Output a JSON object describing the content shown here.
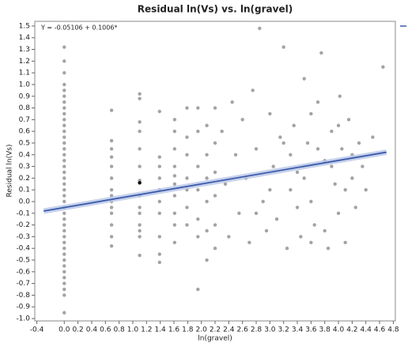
{
  "chart_data": {
    "type": "scatter",
    "title": "Residual ln(Vs) vs. ln(gravel)",
    "x_label": "ln(gravel)",
    "y_label": "Residual ln(Vs)",
    "annotation": "Y = -0.05106 + 0.1006*",
    "xlim": [
      -0.43,
      4.83
    ],
    "ylim": [
      -1.02,
      1.54
    ],
    "xticks": [
      -0.4,
      {
        "value": 0,
        "label": "0.0"
      },
      0.2,
      0.4,
      0.6,
      0.8,
      {
        "value": 1,
        "label": "1.0"
      },
      1.2,
      1.4,
      1.6,
      1.8,
      {
        "value": 2,
        "label": "2.0"
      },
      2.2,
      2.4,
      2.6,
      2.8,
      {
        "value": 3,
        "label": "3.0"
      },
      3.2,
      3.4,
      3.6,
      3.8,
      {
        "value": 4,
        "label": "4.0"
      },
      4.2,
      4.4,
      4.6,
      4.8
    ],
    "yticks": [
      {
        "value": -1,
        "label": "-1.0"
      },
      -0.9,
      -0.8,
      -0.7,
      -0.6,
      -0.5,
      -0.4,
      -0.3,
      -0.2,
      -0.1,
      {
        "value": 0,
        "label": "0.0"
      },
      0.1,
      0.2,
      0.3,
      0.4,
      0.5,
      0.6,
      0.7,
      0.8,
      0.9,
      {
        "value": 1,
        "label": "1.0"
      },
      1.1,
      1.2,
      1.3,
      1.4,
      1.5
    ],
    "grid": false,
    "points": {
      "color": "#a3a3a3",
      "x": [
        0,
        0,
        0,
        0,
        0,
        0,
        0,
        0,
        0,
        0,
        0,
        0,
        0,
        0,
        0,
        0,
        0,
        0,
        0,
        0,
        0,
        0,
        0,
        0,
        0,
        0,
        0,
        0,
        0,
        0,
        0,
        0,
        0,
        0,
        0,
        0,
        0,
        0,
        0,
        0,
        0,
        0.69,
        0.69,
        0.69,
        0.69,
        0.69,
        0.69,
        0.69,
        0.69,
        0.69,
        0.69,
        0.69,
        0.69,
        0.69,
        0.69,
        1.1,
        1.1,
        1.1,
        1.1,
        1.1,
        1.1,
        1.1,
        1.1,
        1.1,
        1.1,
        1.1,
        1.1,
        1.1,
        1.1,
        1.39,
        1.39,
        1.39,
        1.39,
        1.39,
        1.39,
        1.39,
        1.39,
        1.39,
        1.39,
        1.61,
        1.61,
        1.61,
        1.61,
        1.61,
        1.61,
        1.61,
        1.61,
        1.61,
        1.61,
        1.79,
        1.79,
        1.79,
        1.79,
        1.79,
        1.79,
        1.79,
        1.95,
        1.95,
        1.95,
        1.95,
        1.95,
        1.95,
        1.95,
        2.08,
        2.08,
        2.08,
        2.08,
        2.08,
        2.08,
        2.2,
        2.2,
        2.2,
        2.2,
        2.2,
        2.2,
        2.3,
        2.35,
        2.4,
        2.45,
        2.5,
        2.55,
        2.6,
        2.65,
        2.7,
        2.75,
        2.8,
        2.85,
        2.9,
        2.95,
        3.0,
        3.05,
        3.1,
        3.15,
        3.2,
        3.25,
        3.3,
        3.35,
        3.4,
        3.45,
        3.5,
        3.55,
        3.6,
        3.65,
        3.7,
        3.75,
        3.8,
        3.85,
        3.9,
        3.95,
        4.0,
        4.02,
        4.05,
        4.1,
        4.15,
        4.2,
        4.25,
        4.3,
        4.35,
        4.4,
        4.5,
        4.65,
        3.3,
        3.5,
        3.7,
        3.9,
        4.0,
        3.6,
        3.8,
        4.1,
        3.4,
        3.2,
        3.0,
        2.8,
        3.6,
        4.2
      ],
      "y": [
        1.32,
        1.2,
        1.1,
        1.0,
        0.95,
        0.9,
        0.85,
        0.8,
        0.75,
        0.7,
        0.65,
        0.6,
        0.55,
        0.5,
        0.45,
        0.4,
        0.35,
        0.3,
        0.25,
        0.2,
        0.15,
        0.1,
        0.05,
        0.0,
        -0.05,
        -0.1,
        -0.15,
        -0.2,
        -0.25,
        -0.3,
        -0.35,
        -0.4,
        -0.45,
        -0.5,
        -0.55,
        -0.6,
        -0.65,
        -0.7,
        -0.75,
        -0.8,
        -0.95,
        0.78,
        0.52,
        0.45,
        0.38,
        0.3,
        0.2,
        0.1,
        0.05,
        0.0,
        -0.05,
        -0.1,
        -0.2,
        -0.3,
        -0.38,
        0.92,
        0.88,
        0.68,
        0.6,
        0.45,
        0.3,
        0.18,
        0.05,
        -0.05,
        -0.1,
        -0.2,
        -0.25,
        -0.3,
        -0.46,
        0.77,
        0.38,
        0.3,
        0.2,
        0.1,
        0.0,
        -0.1,
        -0.3,
        -0.45,
        -0.52,
        0.7,
        0.6,
        0.45,
        0.3,
        0.22,
        0.15,
        0.05,
        -0.1,
        -0.2,
        -0.35,
        0.8,
        0.55,
        0.4,
        0.2,
        0.1,
        -0.05,
        -0.2,
        0.8,
        0.6,
        0.3,
        0.1,
        -0.15,
        -0.3,
        -0.75,
        0.65,
        0.4,
        0.2,
        0.0,
        -0.25,
        -0.5,
        0.8,
        0.5,
        0.25,
        0.05,
        -0.2,
        -0.4,
        0.6,
        0.15,
        -0.3,
        0.85,
        0.4,
        -0.1,
        0.7,
        0.2,
        -0.35,
        0.95,
        0.45,
        1.48,
        0.0,
        -0.25,
        0.75,
        0.3,
        -0.15,
        0.55,
        1.32,
        -0.4,
        0.1,
        0.65,
        0.25,
        -0.3,
        1.05,
        0.5,
        0.0,
        -0.2,
        0.85,
        1.27,
        0.35,
        -0.4,
        0.6,
        0.15,
        -0.1,
        0.9,
        0.45,
        -0.35,
        0.7,
        0.2,
        -0.05,
        0.5,
        0.3,
        0.1,
        0.55,
        1.15,
        0.4,
        0.2,
        0.45,
        0.3,
        0.65,
        0.75,
        -0.25,
        0.1,
        -0.05,
        0.5,
        0.1,
        -0.1,
        -0.35,
        0.4
      ]
    },
    "highlight_point": {
      "color": "#000000",
      "x": [
        1.1
      ],
      "y": [
        0.16
      ]
    },
    "fit_line": {
      "color": "#3b5bab",
      "band_color": "#b8c6e6",
      "x": [
        -0.3,
        4.7
      ],
      "y": [
        -0.0813,
        0.4217
      ]
    }
  }
}
